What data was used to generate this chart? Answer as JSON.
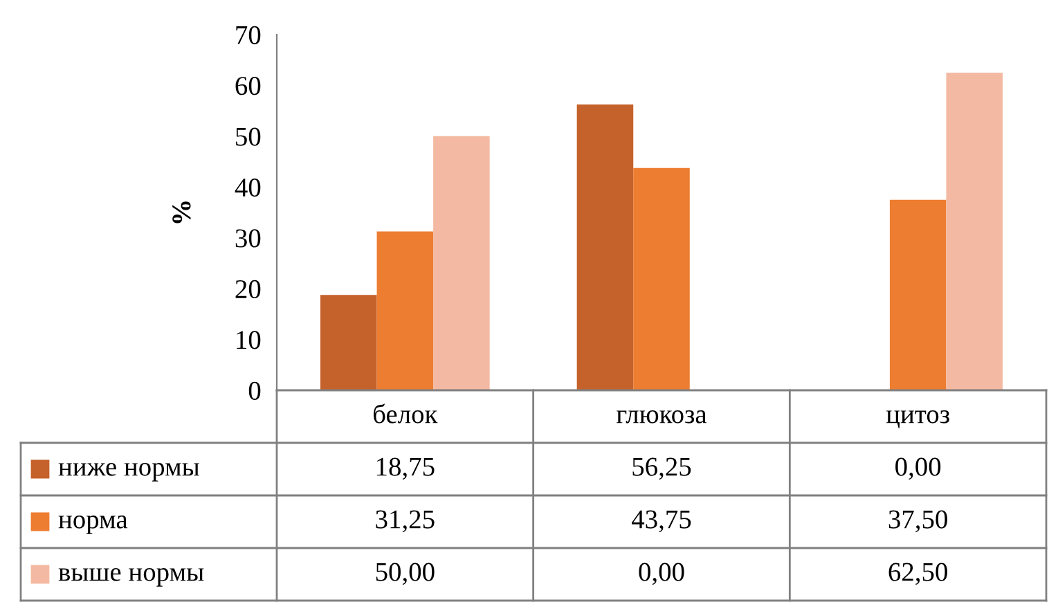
{
  "chart_data": {
    "type": "bar",
    "ylabel": "%",
    "categories": [
      "белок",
      "глюкоза",
      "цитоз"
    ],
    "series": [
      {
        "name": "ниже нормы",
        "color": "#c5612a",
        "values": [
          18.75,
          56.25,
          0.0
        ],
        "value_labels": [
          "18,75",
          "56,25",
          "0,00"
        ]
      },
      {
        "name": "норма",
        "color": "#ed7d31",
        "values": [
          31.25,
          43.75,
          37.5
        ],
        "value_labels": [
          "31,25",
          "43,75",
          "37,50"
        ]
      },
      {
        "name": "выше нормы",
        "color": "#f4b9a2",
        "values": [
          50.0,
          0.0,
          62.5
        ],
        "value_labels": [
          "50,00",
          "0,00",
          "62,50"
        ]
      }
    ],
    "ylim": [
      0,
      70
    ],
    "yticks": [
      0,
      10,
      20,
      30,
      40,
      50,
      60,
      70
    ],
    "grid": false,
    "legend": "bottom left"
  }
}
